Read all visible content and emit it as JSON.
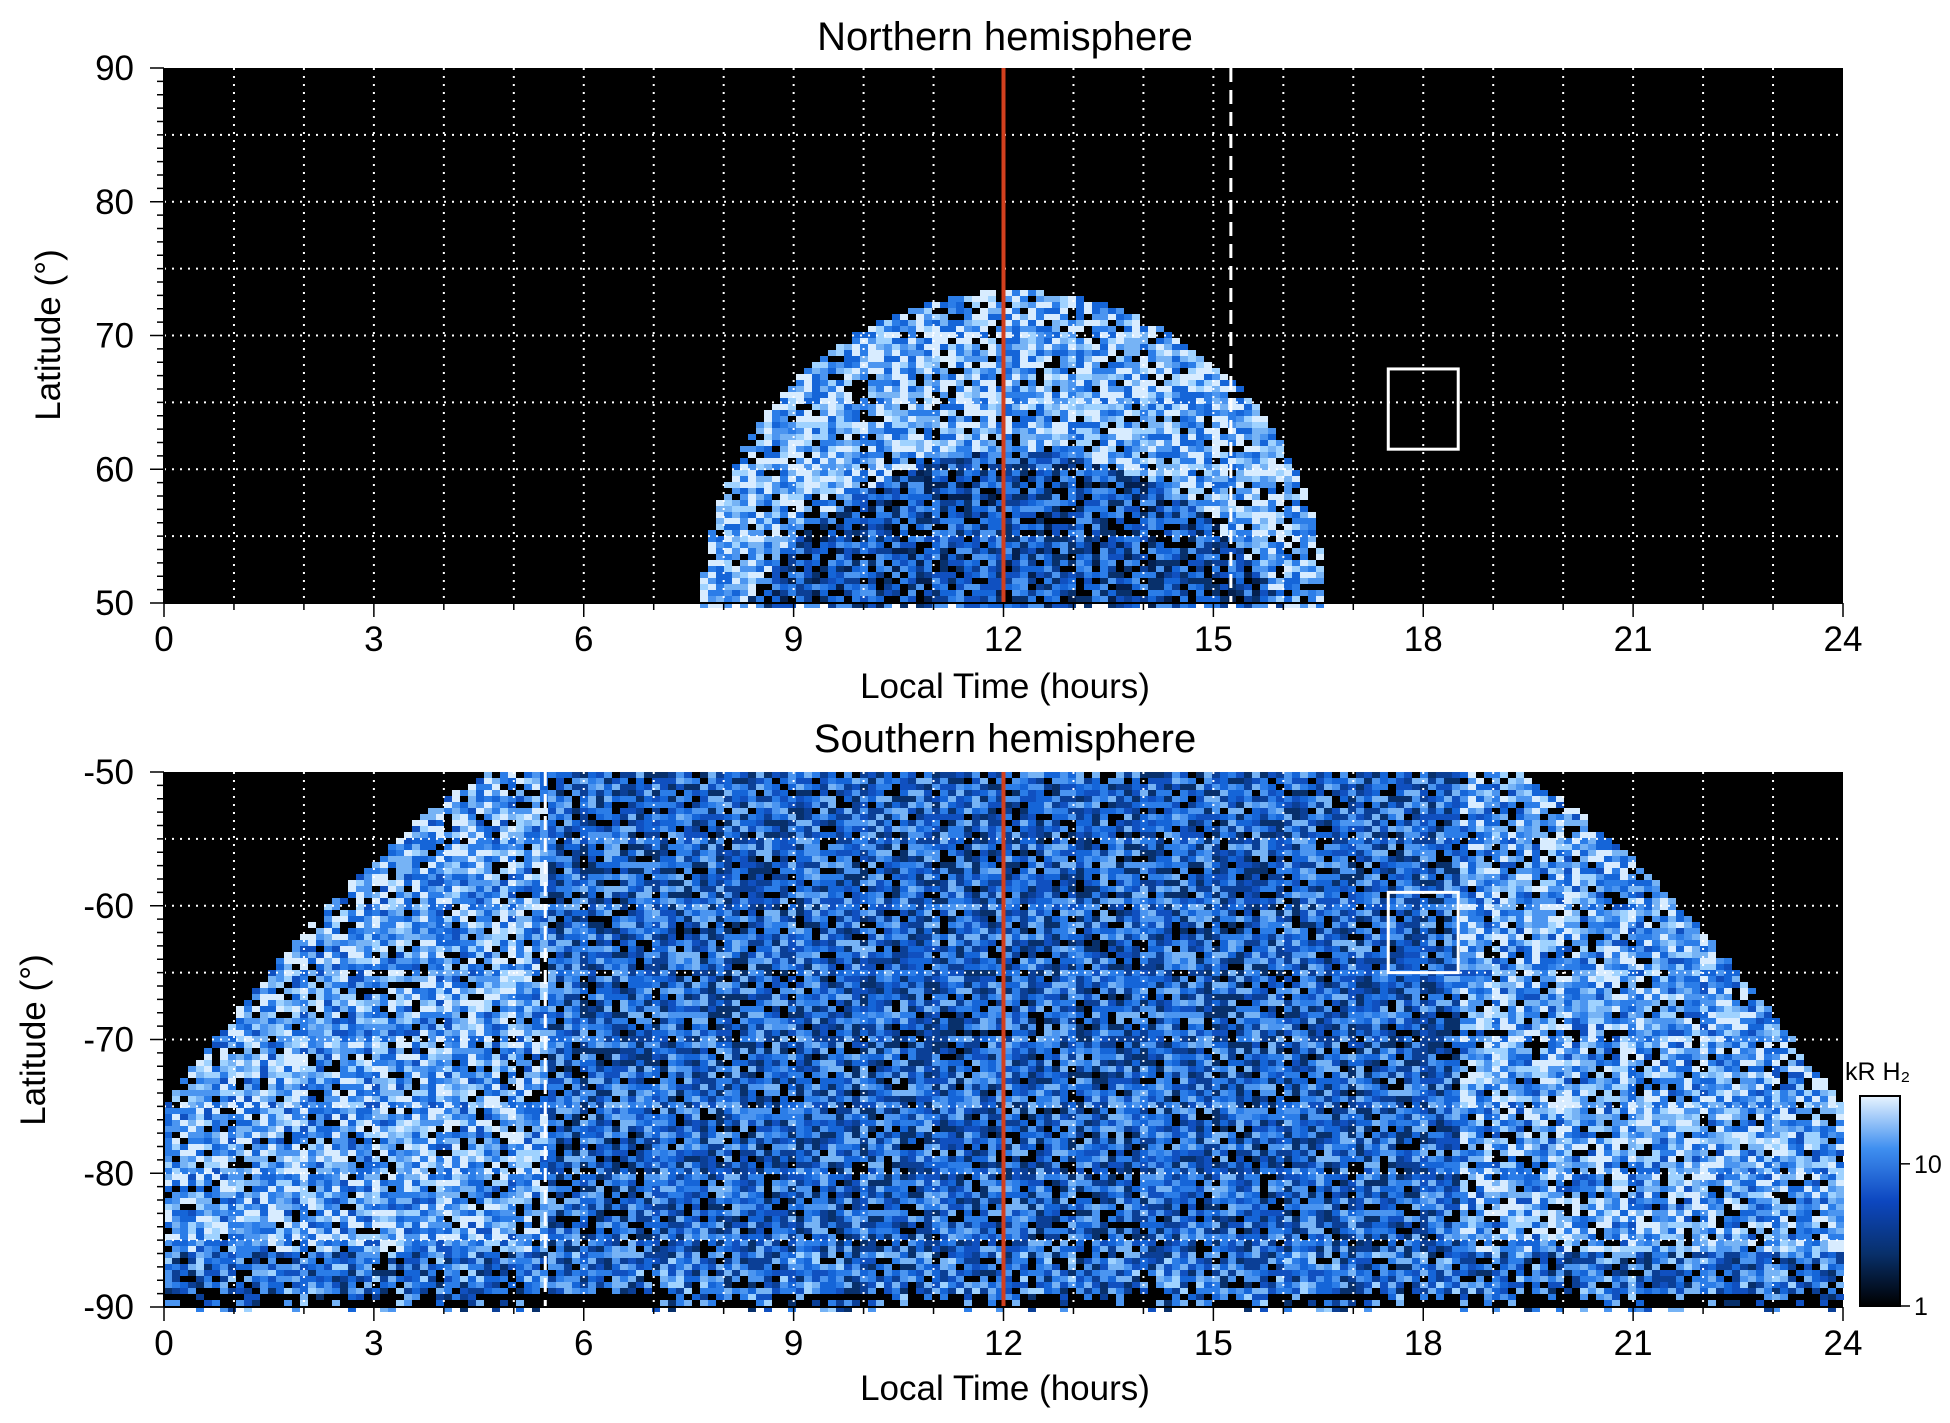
{
  "colors": {
    "background": "#000000",
    "aurora_low": "#08306b",
    "aurora_mid": "#1565d8",
    "aurora_high": "#9fd2ff",
    "noon_line": "#d2401e",
    "grid": "#ffffff"
  },
  "chart_data": [
    {
      "type": "heatmap",
      "title": "Northern hemisphere",
      "xlabel": "Local Time (hours)",
      "ylabel": "Latitude (°)",
      "xlim": [
        0,
        24
      ],
      "ylim": [
        50,
        90
      ],
      "xticks": [
        "0",
        "3",
        "6",
        "9",
        "12",
        "15",
        "18",
        "21",
        "24"
      ],
      "yticks": [
        "50",
        "60",
        "70",
        "80",
        "90"
      ],
      "grid": true,
      "noon_line_lt": 12,
      "dashed_line_lt": 15.25,
      "box": {
        "lt": [
          17.5,
          18.5
        ],
        "lat": [
          61.5,
          67.5
        ]
      },
      "aurora_region": {
        "lt_min": 7.7,
        "lt_max": 16.6,
        "lat_min": 50,
        "lat_max": 73.3,
        "bright_oval_lat": [
          62,
          72
        ]
      }
    },
    {
      "type": "heatmap",
      "title": "Southern hemisphere",
      "xlabel": "Local Time (hours)",
      "ylabel": "Latitude (°)",
      "xlim": [
        0,
        24
      ],
      "ylim": [
        -90,
        -50
      ],
      "xticks": [
        "0",
        "3",
        "6",
        "9",
        "12",
        "15",
        "18",
        "21",
        "24"
      ],
      "yticks": [
        "-50",
        "-60",
        "-70",
        "-80",
        "-90"
      ],
      "grid": true,
      "noon_line_lt": 12,
      "dashed_line_lt": 5.45,
      "box": {
        "lt": [
          17.5,
          18.5
        ],
        "lat": [
          -65,
          -59
        ]
      },
      "aurora_region": {
        "lt_edge_at_lat_50": [
          5.0,
          19.3
        ],
        "lat_edge_at_lt_0": -75.5,
        "bright_oval_lat": [
          -80,
          -70
        ]
      }
    }
  ],
  "colorbar": {
    "label": "kR H₂",
    "ticks": [
      "1",
      "10"
    ],
    "scale": "log",
    "range": [
      1,
      30
    ]
  }
}
